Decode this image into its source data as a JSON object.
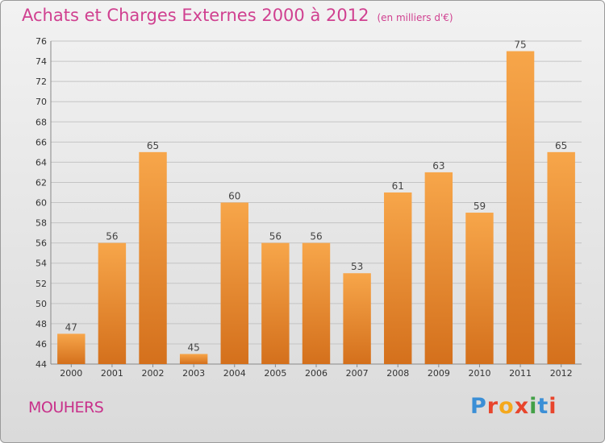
{
  "chart_data": {
    "type": "bar",
    "title": "Achats et Charges Externes 2000 à 2012",
    "subtitle": "(en milliers d'€)",
    "categories": [
      "2000",
      "2001",
      "2002",
      "2003",
      "2004",
      "2005",
      "2006",
      "2007",
      "2008",
      "2009",
      "2010",
      "2011",
      "2012"
    ],
    "values": [
      47,
      56,
      65,
      45,
      60,
      56,
      56,
      53,
      61,
      63,
      59,
      75,
      65
    ],
    "ylim": [
      44,
      76
    ],
    "yticks": [
      44,
      46,
      48,
      50,
      52,
      54,
      56,
      58,
      60,
      62,
      64,
      66,
      68,
      70,
      72,
      74,
      76
    ],
    "grid": true,
    "bar_color_top": "#f7a64a",
    "bar_color_bottom": "#d4701c"
  },
  "footer": {
    "commune": "MOUHERS",
    "brand": "Proxiti",
    "brand_colors": [
      "#3b8fd6",
      "#e8452c",
      "#f4a81c",
      "#e8452c",
      "#43a047",
      "#3b8fd6",
      "#e8452c"
    ]
  }
}
